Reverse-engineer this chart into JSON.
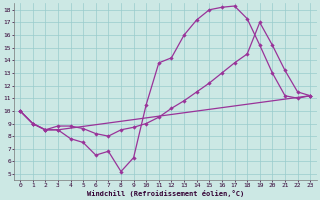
{
  "xlabel": "Windchill (Refroidissement éolien,°C)",
  "xlim": [
    -0.5,
    23.5
  ],
  "ylim": [
    4.5,
    18.5
  ],
  "xticks": [
    0,
    1,
    2,
    3,
    4,
    5,
    6,
    7,
    8,
    9,
    10,
    11,
    12,
    13,
    14,
    15,
    16,
    17,
    18,
    19,
    20,
    21,
    22,
    23
  ],
  "yticks": [
    5,
    6,
    7,
    8,
    9,
    10,
    11,
    12,
    13,
    14,
    15,
    16,
    17,
    18
  ],
  "bg_color": "#cce8e4",
  "line_color": "#993399",
  "grid_color": "#99cccc",
  "line1_x": [
    0,
    1,
    2,
    3,
    4,
    5,
    6,
    7,
    8,
    9,
    10,
    11,
    12,
    13,
    14,
    15,
    16,
    17,
    18,
    19,
    20,
    21,
    22,
    23
  ],
  "line1_y": [
    10.0,
    9.0,
    8.5,
    8.5,
    7.8,
    7.5,
    6.5,
    6.8,
    5.2,
    6.3,
    10.5,
    13.8,
    14.2,
    16.0,
    17.2,
    18.0,
    18.2,
    18.3,
    17.3,
    15.2,
    13.0,
    11.2,
    11.0,
    11.2
  ],
  "line2_x": [
    0,
    1,
    2,
    3,
    4,
    5,
    6,
    7,
    8,
    9,
    10,
    11,
    12,
    13,
    14,
    15,
    16,
    17,
    18,
    19,
    20,
    21,
    22,
    23
  ],
  "line2_y": [
    10.0,
    9.0,
    8.5,
    8.8,
    8.8,
    8.6,
    8.2,
    8.0,
    8.5,
    8.7,
    9.0,
    9.5,
    10.2,
    10.8,
    11.5,
    12.2,
    13.0,
    13.8,
    14.5,
    17.0,
    15.2,
    13.2,
    11.5,
    11.2
  ],
  "line3_x": [
    0,
    1,
    2,
    3,
    23
  ],
  "line3_y": [
    10.0,
    9.0,
    8.5,
    8.5,
    11.2
  ],
  "marker": "D",
  "markersize": 2.2,
  "linewidth": 0.9
}
